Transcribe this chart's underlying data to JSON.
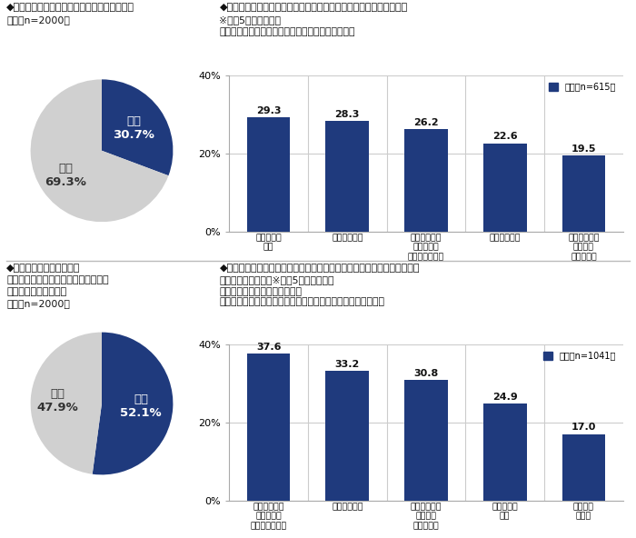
{
  "pie1": {
    "values": [
      30.7,
      69.3
    ],
    "label_aru": "ある\n30.7%",
    "label_nai": "ない\n69.3%",
    "colors": [
      "#1f3a7d",
      "#d0d0d0"
    ],
    "title_line1": "◆親からの相続の際に、苦労した経験があるか",
    "title_line2": "全体［n=2000］"
  },
  "bar1": {
    "categories": [
      "相続財産の\n確認",
      "不動産の処分",
      "すぐに必要な\n現金の準備\n（葬儀代など）",
      "遣産分割協議",
      "加入している\n生命保険\n契約の確認"
    ],
    "values": [
      29.3,
      28.3,
      26.2,
      22.6,
      19.5
    ],
    "bar_color": "#1f3a7d",
    "title_line1": "◆親からの相続の際に、苦労した経験があること　（複数回答形式）",
    "title_line2": "※上余5位までを表示",
    "title_line3": "対象：親からの相続の際に、苦労した経験がある人",
    "legend": "全体［n=615］",
    "ylim": [
      0,
      40
    ],
    "yticks": [
      0,
      20,
      40
    ],
    "yticklabels": [
      "0%",
      "20%",
      "40%"
    ]
  },
  "pie2": {
    "values": [
      52.1,
      47.9
    ],
    "label_aru": "ある\n52.1%",
    "label_nai": "ない\n47.9%",
    "colors": [
      "#1f3a7d",
      "#d0d0d0"
    ],
    "title_line1": "◆自身が亡くなった際に、",
    "title_line2": "　遙された家族や親族が苦労しないか",
    "title_line3": "　心配なことがあるか",
    "title_line4": "全体［n=2000］"
  },
  "bar2": {
    "categories": [
      "すぐに必要な\n現金の準備\n（葬儀代など）",
      "不動産の処分",
      "加入している\n生命保険\n契約の確認",
      "相続財産の\n確認",
      "相続税の\n支払い"
    ],
    "values": [
      37.6,
      33.2,
      30.8,
      24.9,
      17.0
    ],
    "bar_color": "#1f3a7d",
    "title_line1": "◆自身が亡くなった際に、遙された家族や親族が苦労しないか心配なこと",
    "title_line2": "（複数回答形式）　※上余5位までを表示",
    "title_line3": "対象：自身が亡くなった際に、",
    "title_line4": "　　　遙された家族や親族が苦労しないか心配なことがある人",
    "legend": "全体［n=1041］",
    "ylim": [
      0,
      40
    ],
    "yticks": [
      0,
      20,
      40
    ],
    "yticklabels": [
      "0%",
      "20%",
      "40%"
    ]
  },
  "bg_color": "#ffffff",
  "bar_text_color": "#111111",
  "title_color": "#111111"
}
